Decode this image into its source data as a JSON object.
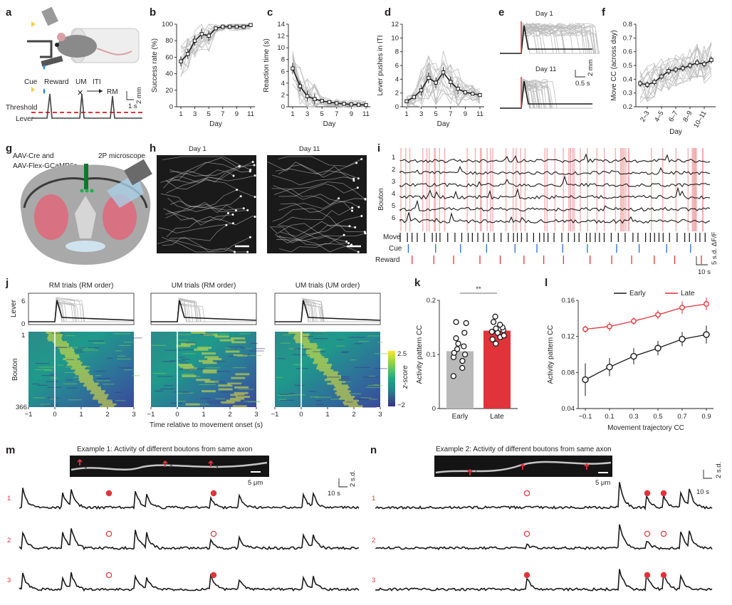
{
  "panel_labels": {
    "a": "a",
    "b": "b",
    "c": "c",
    "d": "d",
    "e": "e",
    "f": "f",
    "g": "g",
    "h": "h",
    "i": "i",
    "j": "j",
    "k": "k",
    "l": "l",
    "m": "m",
    "n": "n"
  },
  "colors": {
    "red": "#e0343a",
    "black": "#1a1a1a",
    "gray": "#bdbdbd",
    "cue_blue": "#1f6fd1",
    "bar_gray": "#b9b9b9",
    "bar_red": "#e0343a"
  },
  "panel_a": {
    "labels": {
      "cue": "Cue",
      "reward": "Reward",
      "um": "UM",
      "iti": "ITI",
      "rm": "RM",
      "threshold": "Threshold",
      "lever": "Lever",
      "time_scale": "1 s",
      "amp_scale": "2 mm"
    }
  },
  "panel_e": {
    "day1": "Day 1",
    "day11": "Day 11",
    "amp_scale": "2 mm",
    "time_scale": "0.5 s"
  },
  "panel_g": {
    "injection_line1": "AAV-Cre and",
    "injection_line2": "AAV-Flex-GCaMP6s",
    "microscope": "2P microscope"
  },
  "panel_h": {
    "day1": "Day 1",
    "day11": "Day 11"
  },
  "panel_i": {
    "ylabel": "Bouton",
    "rows": [
      "1",
      "2",
      "3",
      "4",
      "5",
      "6"
    ],
    "move": "Move",
    "cue": "Cue",
    "reward": "Reward",
    "amp_scale": "5 s.d. ΔF/F",
    "time_scale": "10 s"
  },
  "panel_j": {
    "titles": [
      "RM trials (RM order)",
      "UM trials (RM order)",
      "UM trials (UM order)"
    ],
    "lever_label": "Lever",
    "lever_ticks": [
      "6",
      "0"
    ],
    "bouton_label": "Bouton",
    "bouton_ticks": [
      "1",
      "366"
    ],
    "xticks": [
      "−1",
      "0",
      "1",
      "2",
      "3"
    ],
    "xlabel": "Time relative to movement onset (s)",
    "colorbar_label": "z-score",
    "colorbar_ticks": [
      "2.5",
      "−2"
    ]
  },
  "panel_m": {
    "title": "Example 1: Activity of different boutons from same axon",
    "scale_um": "5 μm",
    "amp_scale": "2 s.d.",
    "time_scale": "10 s",
    "rows": [
      "1",
      "2",
      "3"
    ],
    "arrows": [
      "1",
      "2",
      "3"
    ]
  },
  "panel_n": {
    "title": "Example 2: Activity of different boutons from same axon",
    "scale_um": "5 μm",
    "amp_scale": "2 s.d.",
    "time_scale": "10 s",
    "rows": [
      "1",
      "2",
      "3"
    ],
    "arrows": [
      "1",
      "2",
      "3"
    ]
  },
  "chart_data": [
    {
      "id": "b",
      "type": "line",
      "xlabel": "Day",
      "ylabel": "Success rate (%)",
      "xticks": [
        "1",
        "3",
        "5",
        "7",
        "9",
        "11"
      ],
      "yticks": [
        "0",
        "20",
        "40",
        "60",
        "80",
        "100"
      ],
      "xlim": [
        1,
        11
      ],
      "ylim": [
        0,
        100
      ],
      "series": [
        {
          "name": "mean",
          "x": [
            1,
            2,
            3,
            4,
            5,
            6,
            7,
            8,
            9,
            10,
            11
          ],
          "values": [
            55,
            64,
            80,
            88,
            86,
            95,
            97,
            97,
            97,
            97,
            99
          ]
        }
      ]
    },
    {
      "id": "c",
      "type": "line",
      "xlabel": "Day",
      "ylabel": "Reaction time (s)",
      "xticks": [
        "1",
        "3",
        "5",
        "7",
        "9",
        "11"
      ],
      "yticks": [
        "0",
        "2",
        "4",
        "6",
        "8",
        "10",
        "12",
        "14"
      ],
      "xlim": [
        1,
        11
      ],
      "ylim": [
        0,
        14
      ],
      "series": [
        {
          "name": "mean",
          "x": [
            1,
            2,
            3,
            4,
            5,
            6,
            7,
            8,
            9,
            10,
            11
          ],
          "values": [
            6.5,
            3.5,
            1.8,
            1.3,
            1.0,
            0.8,
            0.6,
            0.5,
            0.4,
            0.35,
            0.3
          ]
        }
      ]
    },
    {
      "id": "d",
      "type": "line",
      "xlabel": "Day",
      "ylabel": "Lever pushes in ITI",
      "xticks": [
        "1",
        "3",
        "5",
        "7",
        "9",
        "11"
      ],
      "yticks": [
        "0",
        "2",
        "4",
        "6",
        "8",
        "10",
        "12"
      ],
      "xlim": [
        1,
        11
      ],
      "ylim": [
        0,
        12
      ],
      "series": [
        {
          "name": "mean",
          "x": [
            1,
            2,
            3,
            4,
            5,
            6,
            7,
            8,
            9,
            10,
            11
          ],
          "values": [
            0.8,
            1.4,
            2.4,
            4.2,
            3.5,
            5.0,
            3.6,
            2.6,
            2.1,
            1.9,
            1.7
          ]
        }
      ]
    },
    {
      "id": "f",
      "type": "line",
      "xlabel": "Day",
      "ylabel": "Move CC (across day)",
      "xticks": [
        "2–3",
        "4–5",
        "6–7",
        "8–9",
        "10–11"
      ],
      "yticks": [
        "0.2",
        "0.3",
        "0.4",
        "0.5",
        "0.6",
        "0.7",
        "0.8"
      ],
      "ylim": [
        0.2,
        0.8
      ],
      "series": [
        {
          "name": "mean",
          "values": [
            0.37,
            0.36,
            0.38,
            0.42,
            0.46,
            0.47,
            0.48,
            0.5,
            0.52,
            0.51,
            0.54
          ]
        }
      ]
    },
    {
      "id": "k",
      "type": "bar",
      "ylabel": "Activity pattern CC",
      "categories": [
        "Early",
        "Late"
      ],
      "values": [
        0.106,
        0.144
      ],
      "yticks": [
        "0",
        "0.1",
        "0.2"
      ],
      "ylim": [
        0,
        0.2
      ],
      "annotation": "**",
      "points": [
        [
          0.06,
          0.075,
          0.088,
          0.095,
          0.1,
          0.103,
          0.11,
          0.115,
          0.12,
          0.13,
          0.14,
          0.158,
          0.16
        ],
        [
          0.12,
          0.128,
          0.132,
          0.135,
          0.14,
          0.142,
          0.145,
          0.148,
          0.15,
          0.155,
          0.16,
          0.17
        ]
      ]
    },
    {
      "id": "l",
      "type": "line",
      "xlabel": "Movement trajectory CC",
      "ylabel": "Activity pattern CC",
      "xticks": [
        "−0.1",
        "0.1",
        "0.3",
        "0.5",
        "0.7",
        "0.9"
      ],
      "yticks": [
        "0.04",
        "0.08",
        "0.12",
        "0.16"
      ],
      "xlim": [
        -0.1,
        0.9
      ],
      "ylim": [
        0.04,
        0.16
      ],
      "series": [
        {
          "name": "Early",
          "x": [
            -0.1,
            0.1,
            0.3,
            0.5,
            0.7,
            0.9
          ],
          "values": [
            0.072,
            0.086,
            0.098,
            0.107,
            0.117,
            0.122
          ]
        },
        {
          "name": "Late",
          "x": [
            -0.1,
            0.1,
            0.3,
            0.5,
            0.7,
            0.9
          ],
          "values": [
            0.128,
            0.131,
            0.137,
            0.144,
            0.152,
            0.156
          ]
        }
      ]
    }
  ]
}
